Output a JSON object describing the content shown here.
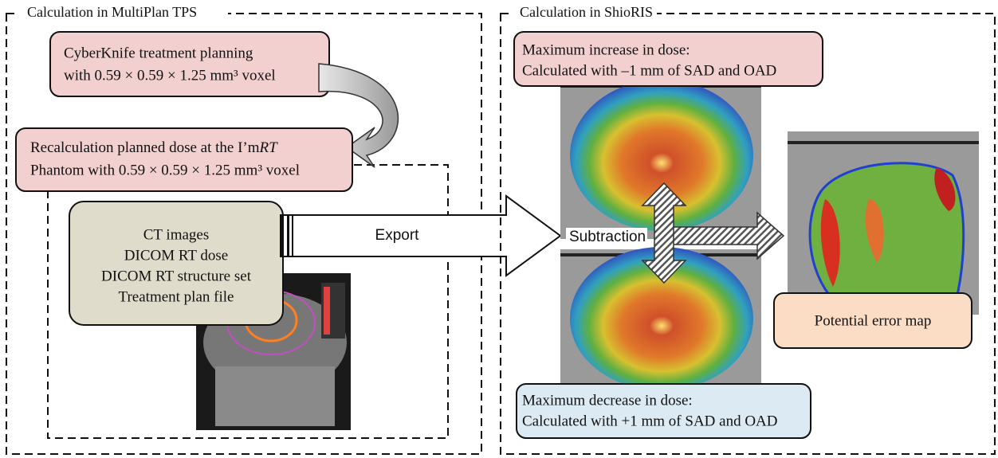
{
  "left_panel": {
    "title": "Calculation in MultiPlan TPS",
    "planning_box": {
      "lines": [
        "CyberKnife treatment planning",
        "with 0.59 × 0.59 × 1.25 mm³ voxel"
      ]
    },
    "recalc_box": {
      "line1": "Recalculation planned dose at the I’m",
      "line1_italic": "RT",
      "line2": "Phantom with 0.59 × 0.59 × 1.25 mm³ voxel"
    },
    "export_box": {
      "lines": [
        "CT images",
        "DICOM RT dose",
        "DICOM RT structure set",
        "Treatment plan file"
      ]
    },
    "export_arrow": "Export"
  },
  "right_panel": {
    "title": "Calculation in ShioRIS",
    "increase_box": {
      "lines": [
        "Maximum increase in dose:",
        "Calculated with –1 mm of SAD and OAD"
      ]
    },
    "subtraction": "Subtraction",
    "decrease_box": {
      "lines": [
        "Maximum decrease in dose:",
        "Calculated with +1 mm of SAD and OAD"
      ]
    },
    "error_box": "Potential error map"
  }
}
